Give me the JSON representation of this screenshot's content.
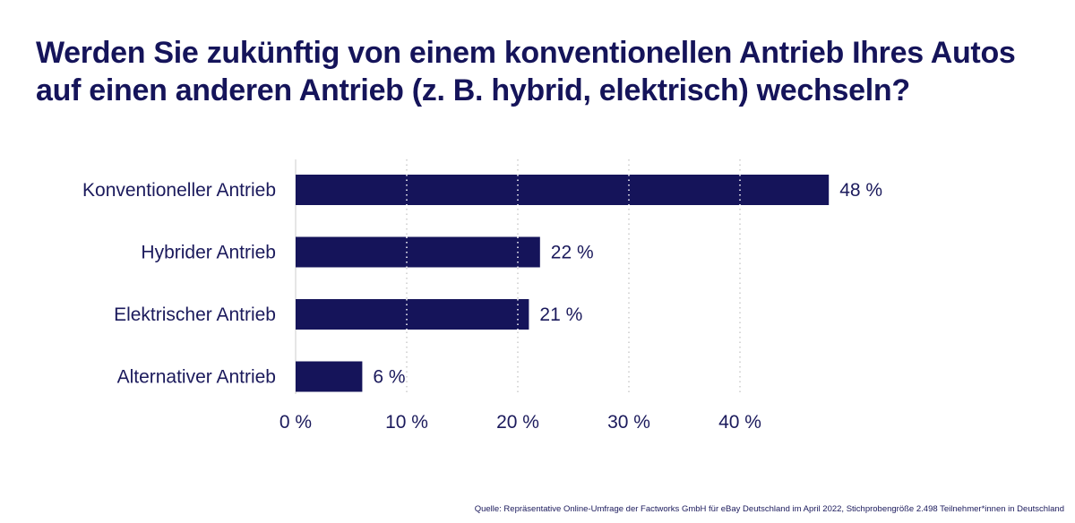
{
  "chart_data": {
    "type": "bar",
    "orientation": "horizontal",
    "title": "Werden Sie zukünftig von einem konventionellen Antrieb Ihres Autos auf einen anderen Antrieb (z. B. hybrid, elektrisch) wechseln?",
    "categories": [
      "Konventioneller Antrieb",
      "Hybrider Antrieb",
      "Elektrischer Antrieb",
      "Alternativer Antrieb"
    ],
    "values": [
      48,
      22,
      21,
      6
    ],
    "value_labels": [
      "48 %",
      "22 %",
      "21 %",
      "6 %"
    ],
    "x_ticks": [
      0,
      10,
      20,
      30,
      40
    ],
    "x_tick_labels": [
      "0 %",
      "10 %",
      "20 %",
      "30 %",
      "40 %"
    ],
    "xlim": [
      0,
      48
    ],
    "xlabel": "",
    "ylabel": "",
    "grid": "vertical dotted",
    "bar_color": "#15145a",
    "grid_color": "#cccccc"
  },
  "source": "Quelle: Repräsentative Online-Umfrage der Factworks GmbH für eBay Deutschland im April 2022, Stichprobengröße 2.498 Teilnehmer*innen in Deutschland"
}
